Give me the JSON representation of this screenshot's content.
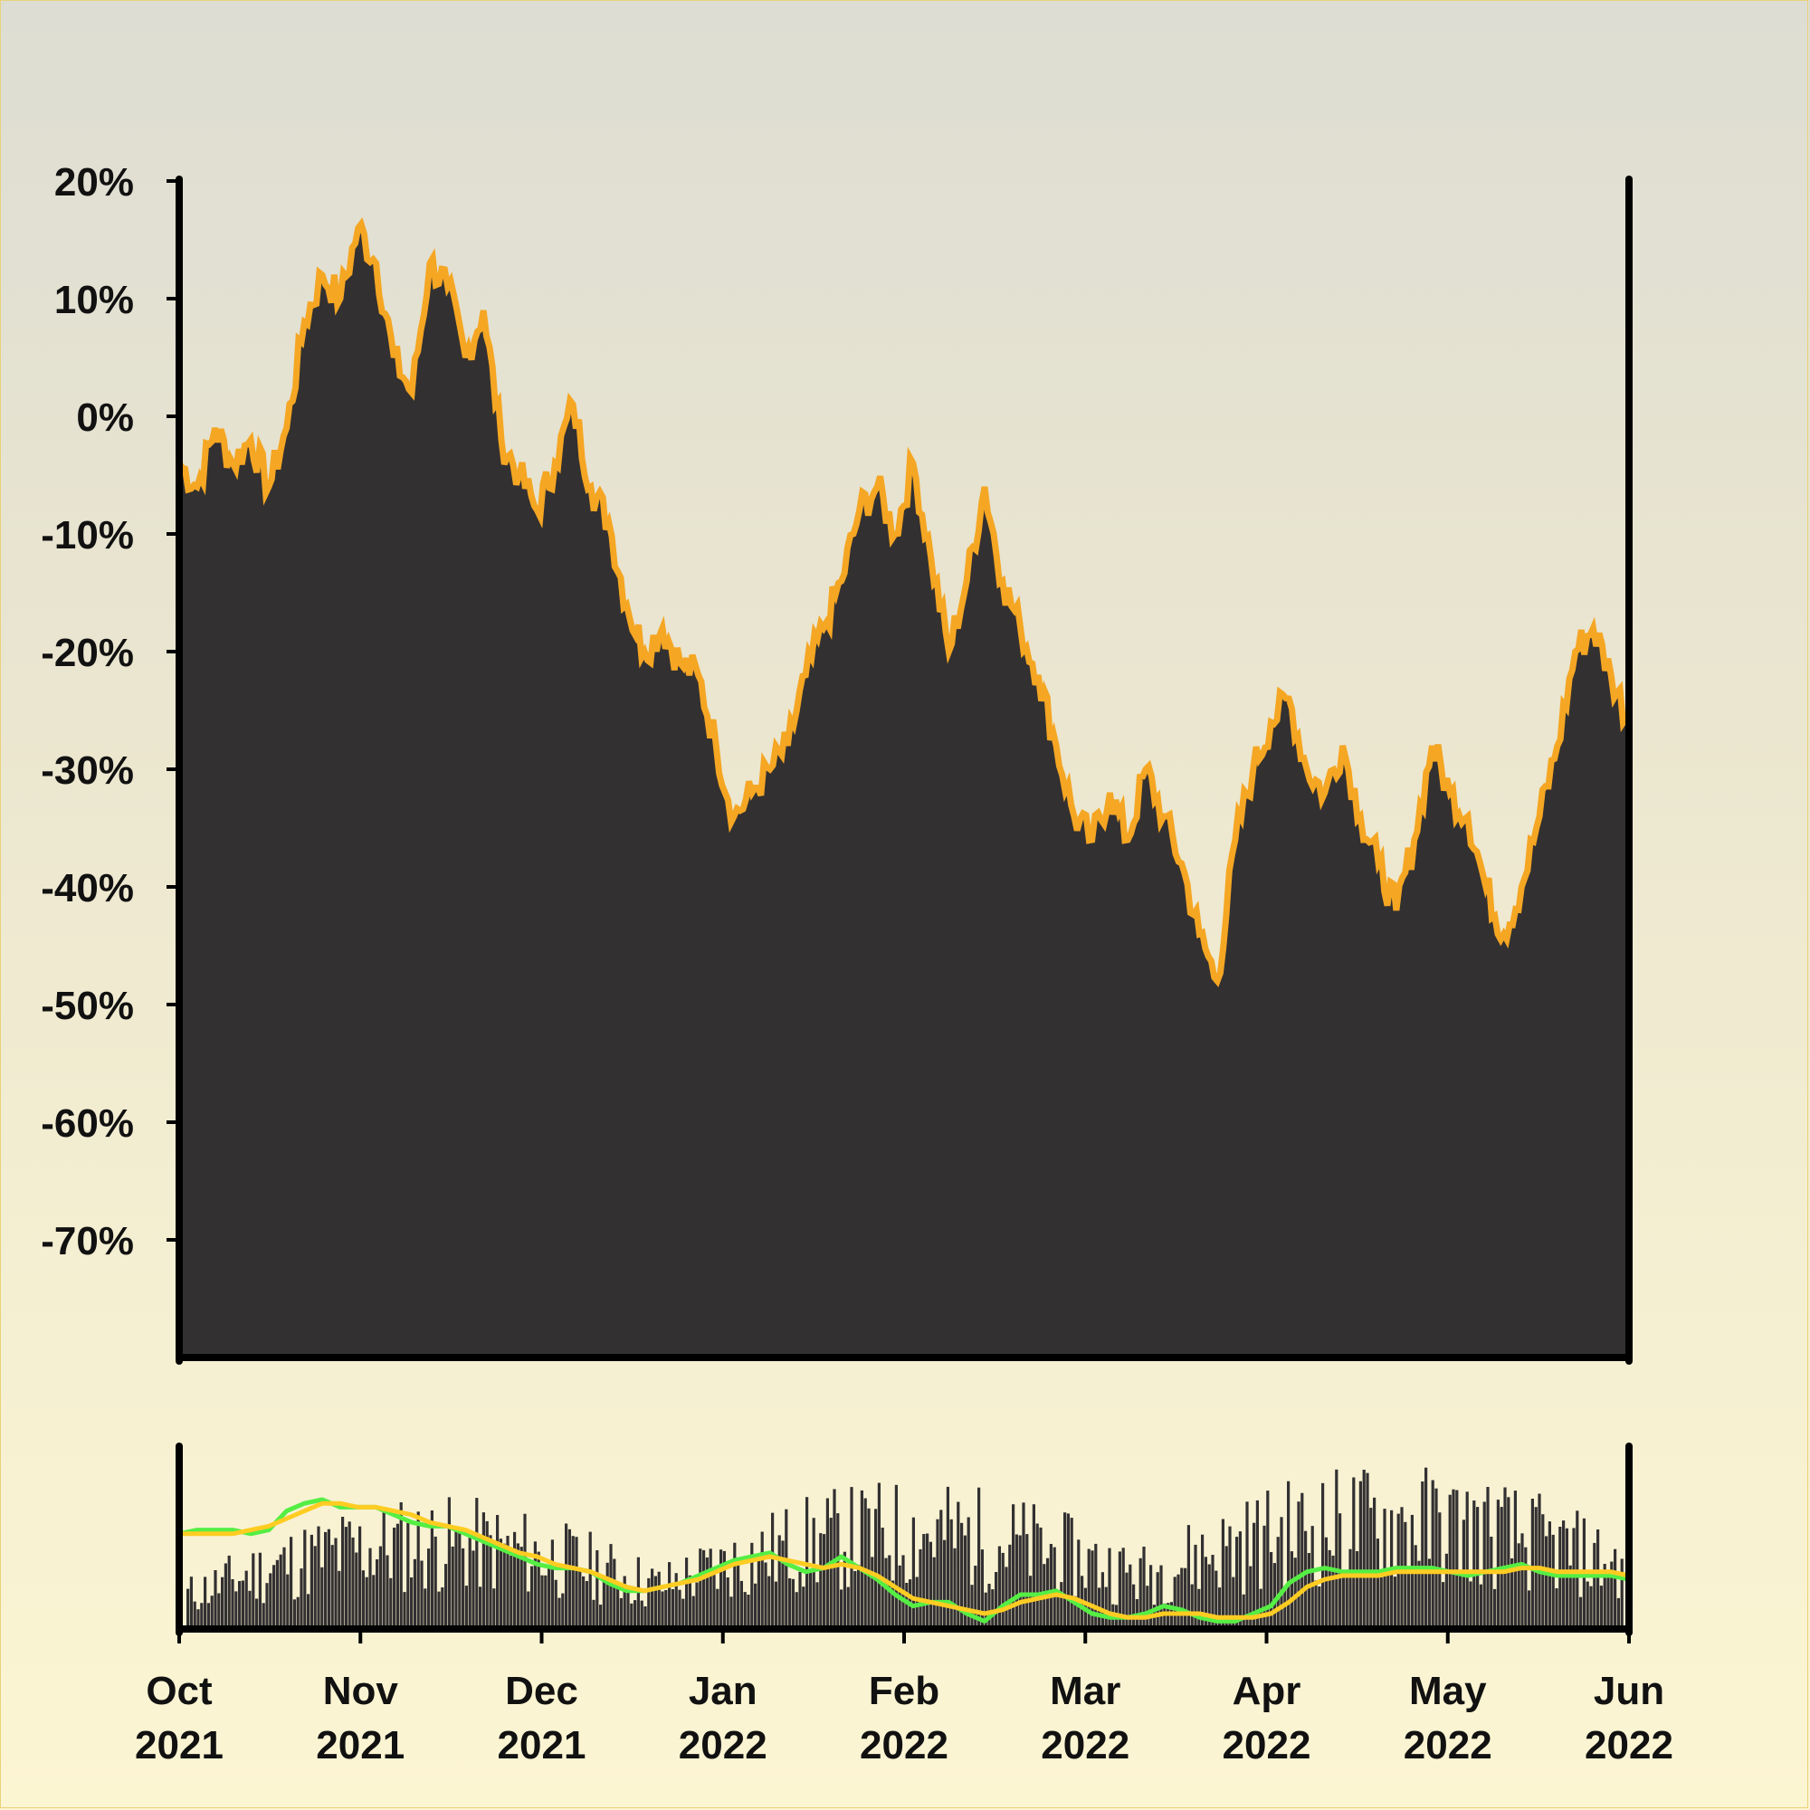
{
  "chart_data": {
    "type": "area",
    "main_panel": {
      "ylim": [
        -80,
        20
      ],
      "yticks": [
        20,
        10,
        0,
        -10,
        -20,
        -30,
        -40,
        -50,
        -60,
        -70
      ],
      "ytick_labels": [
        "20%",
        "10%",
        "0%",
        "-10%",
        "-20%",
        "-30%",
        "-40%",
        "-50%",
        "-60%",
        "-70%"
      ],
      "grid": false,
      "series": [
        {
          "x": [
            "2021-10-01",
            "2021-10-04",
            "2021-10-07",
            "2021-10-10",
            "2021-10-13",
            "2021-10-16",
            "2021-10-19",
            "2021-10-22",
            "2021-10-25",
            "2021-10-28",
            "2021-10-31",
            "2021-11-03",
            "2021-11-06",
            "2021-11-09",
            "2021-11-12",
            "2021-11-15",
            "2021-11-18",
            "2021-11-21",
            "2021-11-24",
            "2021-11-27",
            "2021-11-30",
            "2021-12-03",
            "2021-12-06",
            "2021-12-09",
            "2021-12-12",
            "2021-12-15",
            "2021-12-18",
            "2021-12-21",
            "2021-12-24",
            "2021-12-27",
            "2021-12-30",
            "2022-01-02",
            "2022-01-05",
            "2022-01-08",
            "2022-01-11",
            "2022-01-14",
            "2022-01-17",
            "2022-01-20",
            "2022-01-23",
            "2022-01-26",
            "2022-01-29",
            "2022-02-01",
            "2022-02-04",
            "2022-02-07",
            "2022-02-10",
            "2022-02-13",
            "2022-02-16",
            "2022-02-19",
            "2022-02-22",
            "2022-02-25",
            "2022-02-28",
            "2022-03-03",
            "2022-03-06",
            "2022-03-09",
            "2022-03-12",
            "2022-03-15",
            "2022-03-18",
            "2022-03-21",
            "2022-03-24",
            "2022-03-27",
            "2022-03-30",
            "2022-04-02",
            "2022-04-05",
            "2022-04-08",
            "2022-04-11",
            "2022-04-14",
            "2022-04-17",
            "2022-04-20",
            "2022-04-23",
            "2022-04-26",
            "2022-04-29",
            "2022-05-02",
            "2022-05-05",
            "2022-05-08",
            "2022-05-11",
            "2022-05-14",
            "2022-05-17",
            "2022-05-20",
            "2022-05-23",
            "2022-05-26",
            "2022-05-29",
            "2022-06-01"
          ],
          "values": [
            -4,
            -6,
            -1,
            -4,
            -2,
            -6,
            -1,
            8,
            12,
            10,
            16,
            13,
            5,
            2,
            13,
            11,
            5,
            9,
            -2,
            -5,
            -8,
            -4,
            1,
            -6,
            -9,
            -16,
            -20,
            -18,
            -21,
            -22,
            -28,
            -34,
            -32,
            -30,
            -28,
            -22,
            -18,
            -14,
            -8,
            -6,
            -10,
            -4,
            -12,
            -20,
            -14,
            -6,
            -14,
            -18,
            -22,
            -28,
            -34,
            -36,
            -32,
            -36,
            -30,
            -34,
            -38,
            -44,
            -48,
            -36,
            -30,
            -26,
            -24,
            -30,
            -32,
            -28,
            -34,
            -38,
            -42,
            -36,
            -28,
            -32,
            -34,
            -40,
            -44,
            -40,
            -34,
            -28,
            -20,
            -18,
            -22,
            -26
          ]
        }
      ]
    },
    "lower_panel": {
      "type": "bar+line",
      "lines": [
        {
          "color": "#55ee44",
          "values": [
            6,
            7,
            7,
            7,
            6,
            7,
            12,
            14,
            15,
            13,
            13,
            13,
            11,
            9,
            8,
            8,
            6,
            4,
            2,
            0,
            -2,
            -3,
            -3,
            -4,
            -7,
            -9,
            -9,
            -8,
            -7,
            -5,
            -3,
            -1,
            0,
            1,
            -2,
            -4,
            -3,
            0,
            -3,
            -6,
            -10,
            -13,
            -12,
            -12,
            -15,
            -17,
            -13,
            -10,
            -10,
            -9,
            -12,
            -15,
            -16,
            -16,
            -15,
            -13,
            -14,
            -16,
            -17,
            -17,
            -15,
            -13,
            -7,
            -4,
            -3,
            -4,
            -4,
            -4,
            -3,
            -3,
            -3,
            -4,
            -5,
            -4,
            -3,
            -2,
            -4,
            -5,
            -5,
            -5,
            -5,
            -6
          ]
        },
        {
          "color": "#ffcc22",
          "values": [
            6,
            6,
            6,
            6,
            7,
            8,
            10,
            12,
            14,
            14,
            13,
            13,
            12,
            11,
            9,
            8,
            7,
            5,
            3,
            1,
            0,
            -2,
            -3,
            -4,
            -6,
            -8,
            -9,
            -8,
            -7,
            -6,
            -4,
            -2,
            -1,
            0,
            -1,
            -2,
            -3,
            -2,
            -3,
            -5,
            -8,
            -11,
            -12,
            -13,
            -14,
            -15,
            -14,
            -12,
            -11,
            -10,
            -11,
            -13,
            -15,
            -16,
            -16,
            -15,
            -15,
            -15,
            -16,
            -16,
            -16,
            -15,
            -12,
            -8,
            -6,
            -5,
            -5,
            -5,
            -4,
            -4,
            -4,
            -4,
            -4,
            -4,
            -4,
            -3,
            -3,
            -4,
            -4,
            -4,
            -4,
            -5
          ]
        }
      ],
      "bars": "daily volume (unlabeled)"
    },
    "x_ticks": [
      {
        "month": "Oct",
        "year": "2021"
      },
      {
        "month": "Nov",
        "year": "2021"
      },
      {
        "month": "Dec",
        "year": "2021"
      },
      {
        "month": "Jan",
        "year": "2022"
      },
      {
        "month": "Feb",
        "year": "2022"
      },
      {
        "month": "Mar",
        "year": "2022"
      },
      {
        "month": "Apr",
        "year": "2022"
      },
      {
        "month": "May",
        "year": "2022"
      },
      {
        "month": "Jun",
        "year": "2022"
      }
    ],
    "colors": {
      "area_fill": "#323031",
      "area_edge": "#f5a623",
      "axes": "#000000",
      "bars": "#323031"
    }
  }
}
